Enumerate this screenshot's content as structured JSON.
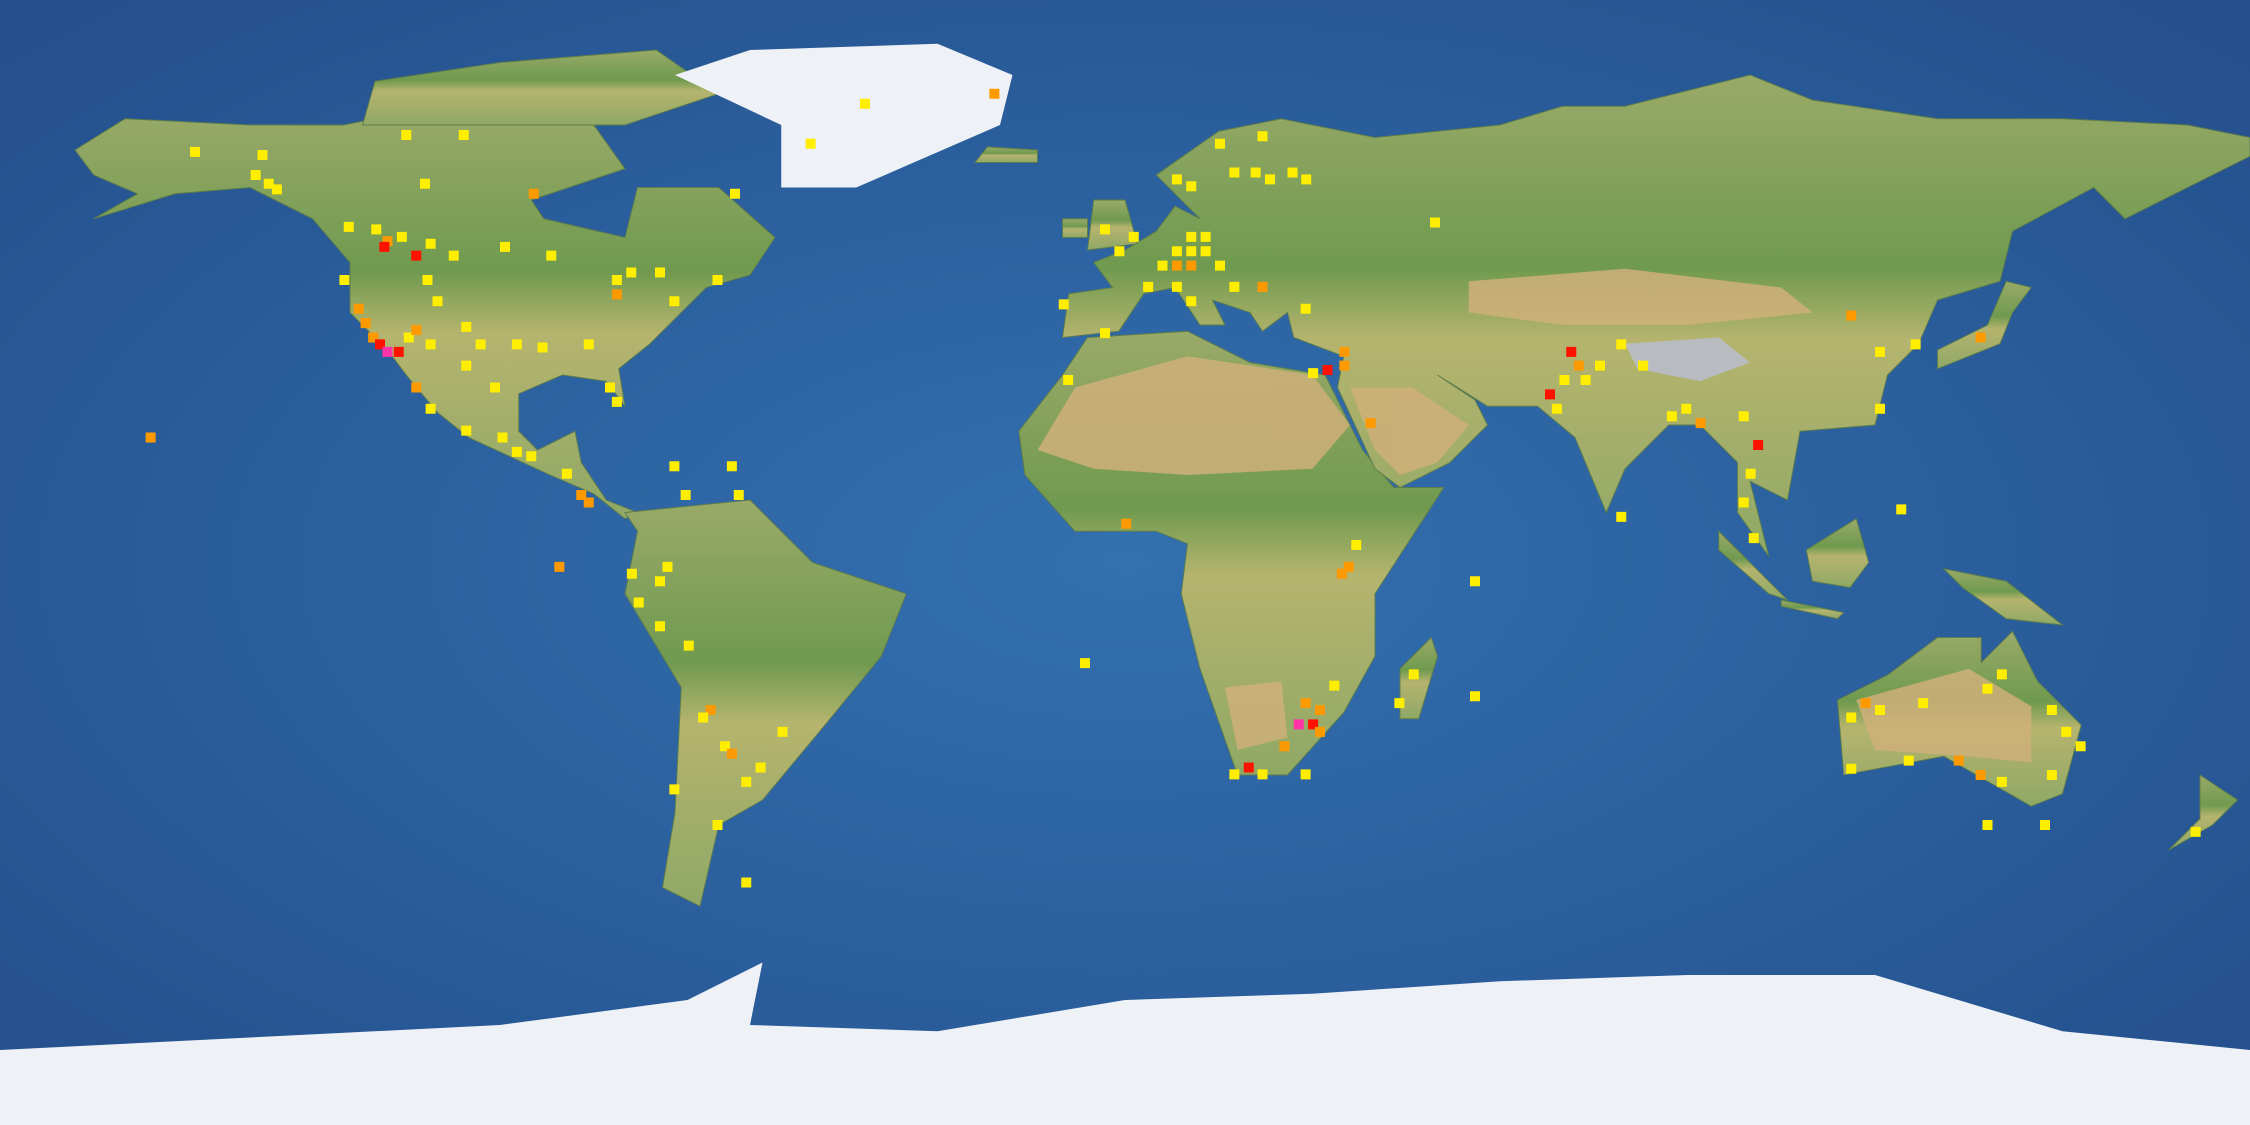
{
  "map": {
    "projection": "equirectangular",
    "basemap": "satellite-relief",
    "cell_size_deg": 1.6,
    "colors": {
      "ocean": "#2d65a6",
      "ocean_deep": "#244f8c",
      "land": "#7ea55a",
      "desert": "#cfb07a",
      "ice": "#eef2f6",
      "level_1": "#ffee00",
      "level_2": "#ff9900",
      "level_3": "#ff1100",
      "level_4": "#ff33aa"
    },
    "points": [
      [
        -148.8,
        65.7,
        1
      ],
      [
        -138,
        65.2,
        1
      ],
      [
        -139.1,
        62,
        1
      ],
      [
        -137,
        60.6,
        1
      ],
      [
        -135.7,
        59.7,
        1
      ],
      [
        -112,
        60.6,
        1
      ],
      [
        -115,
        68.4,
        1
      ],
      [
        -105.8,
        68.4,
        1
      ],
      [
        -94.6,
        59,
        2
      ],
      [
        -62.4,
        59,
        1
      ],
      [
        -124.2,
        53.7,
        1
      ],
      [
        -119.8,
        53.3,
        1
      ],
      [
        -118,
        51.4,
        2
      ],
      [
        -118.5,
        50.5,
        3
      ],
      [
        -113.4,
        49.1,
        3
      ],
      [
        -115.7,
        52.1,
        1
      ],
      [
        -111.1,
        51,
        1
      ],
      [
        -107.4,
        49.1,
        1
      ],
      [
        -99.2,
        50.5,
        1
      ],
      [
        -91.8,
        49.1,
        1
      ],
      [
        -124.9,
        45.2,
        1
      ],
      [
        -111.6,
        45.2,
        1
      ],
      [
        -110,
        41.8,
        1
      ],
      [
        -122.6,
        40.6,
        2
      ],
      [
        -121.5,
        38.3,
        2
      ],
      [
        -120.3,
        36,
        2
      ],
      [
        -119.2,
        34.9,
        3
      ],
      [
        -118,
        33.7,
        4
      ],
      [
        -116.2,
        33.7,
        3
      ],
      [
        -114.6,
        36,
        1
      ],
      [
        -113.4,
        37.2,
        2
      ],
      [
        -111.1,
        34.9,
        1
      ],
      [
        -105.4,
        37.7,
        1
      ],
      [
        -103.1,
        34.9,
        1
      ],
      [
        -105.4,
        31.5,
        1
      ],
      [
        -100.8,
        28,
        1
      ],
      [
        -93.2,
        34.4,
        1
      ],
      [
        -97.3,
        34.9,
        1
      ],
      [
        -81.3,
        45.2,
        1
      ],
      [
        -79,
        46.4,
        1
      ],
      [
        -74.4,
        46.4,
        1
      ],
      [
        -65.2,
        45.2,
        1
      ],
      [
        -72.1,
        41.8,
        1
      ],
      [
        -81.3,
        42.9,
        2
      ],
      [
        -82.4,
        28,
        1
      ],
      [
        -81.3,
        25.7,
        1
      ],
      [
        -85.8,
        34.9,
        1
      ],
      [
        -113.4,
        28,
        2
      ],
      [
        -111.1,
        24.6,
        1
      ],
      [
        -105.4,
        21.1,
        1
      ],
      [
        -99.6,
        20,
        1
      ],
      [
        -97.3,
        17.7,
        1
      ],
      [
        -95,
        17,
        1
      ],
      [
        -89.3,
        14.2,
        1
      ],
      [
        -87,
        10.8,
        2
      ],
      [
        -85.8,
        9.6,
        2
      ],
      [
        -72.1,
        15.4,
        1
      ],
      [
        -62.9,
        15.4,
        1
      ],
      [
        -61.8,
        10.8,
        1
      ],
      [
        -70.3,
        10.8,
        1
      ],
      [
        -155.9,
        20,
        2
      ],
      [
        -90.5,
        -0.7,
        2
      ],
      [
        -41.6,
        73.4,
        1
      ],
      [
        -50.3,
        67,
        1
      ],
      [
        -20.9,
        75,
        2
      ],
      [
        49.6,
        54.4,
        1
      ],
      [
        8.3,
        61.3,
        1
      ],
      [
        10.6,
        60.2,
        1
      ],
      [
        15.2,
        67,
        1
      ],
      [
        22,
        68.2,
        1
      ],
      [
        20.9,
        62.4,
        1
      ],
      [
        23.2,
        61.3,
        1
      ],
      [
        26.8,
        62.4,
        1
      ],
      [
        29,
        61.3,
        1
      ],
      [
        17.5,
        62.4,
        1
      ],
      [
        10.6,
        52.1,
        1
      ],
      [
        12.9,
        52.1,
        1
      ],
      [
        8.3,
        49.8,
        1
      ],
      [
        10.6,
        49.8,
        1
      ],
      [
        12.9,
        49.8,
        1
      ],
      [
        6,
        47.5,
        1
      ],
      [
        8.3,
        47.5,
        2
      ],
      [
        10.6,
        47.5,
        2
      ],
      [
        15.2,
        47.5,
        1
      ],
      [
        1.4,
        52.1,
        1
      ],
      [
        -3.2,
        53.3,
        1
      ],
      [
        -0.9,
        49.8,
        1
      ],
      [
        3.7,
        44.1,
        1
      ],
      [
        8.3,
        44.1,
        1
      ],
      [
        10.6,
        41.8,
        1
      ],
      [
        17.5,
        44.1,
        1
      ],
      [
        22,
        44.1,
        2
      ],
      [
        28.9,
        40.6,
        1
      ],
      [
        -9.8,
        41.3,
        1
      ],
      [
        -3.2,
        36.7,
        1
      ],
      [
        -9.1,
        29.2,
        1
      ],
      [
        35.1,
        33.7,
        2
      ],
      [
        35.1,
        31.5,
        2
      ],
      [
        32.4,
        30.8,
        3
      ],
      [
        30.1,
        30.3,
        1
      ],
      [
        39.3,
        22.3,
        2
      ],
      [
        0.2,
        6.2,
        2
      ],
      [
        35.8,
        -0.7,
        2
      ],
      [
        34.7,
        -1.8,
        2
      ],
      [
        37,
        2.8,
        1
      ],
      [
        56,
        -3,
        1
      ],
      [
        -6.4,
        -16.1,
        1
      ],
      [
        46.2,
        -17.9,
        1
      ],
      [
        43.9,
        -22.5,
        1
      ],
      [
        56,
        -21.4,
        1
      ],
      [
        28.9,
        -22.5,
        2
      ],
      [
        31.2,
        -23.6,
        2
      ],
      [
        30.1,
        -25.9,
        3
      ],
      [
        27.8,
        -25.9,
        4
      ],
      [
        31.2,
        -27.1,
        2
      ],
      [
        25.5,
        -29.4,
        2
      ],
      [
        19.8,
        -32.8,
        3
      ],
      [
        17.5,
        -33.9,
        1
      ],
      [
        22,
        -33.9,
        1
      ],
      [
        28.9,
        -33.9,
        1
      ],
      [
        33.5,
        -19.7,
        1
      ],
      [
        71.4,
        33.7,
        3
      ],
      [
        72.6,
        31.5,
        2
      ],
      [
        73.7,
        29.2,
        1
      ],
      [
        70.3,
        29.2,
        1
      ],
      [
        68,
        26.9,
        3
      ],
      [
        69.1,
        24.6,
        1
      ],
      [
        76,
        31.5,
        1
      ],
      [
        82.9,
        31.5,
        1
      ],
      [
        79.4,
        34.9,
        1
      ],
      [
        89.8,
        24.6,
        1
      ],
      [
        92.1,
        22.3,
        2
      ],
      [
        87.5,
        23.4,
        1
      ],
      [
        101.3,
        18.8,
        3
      ],
      [
        100.1,
        14.2,
        1
      ],
      [
        99,
        9.6,
        1
      ],
      [
        100.6,
        3.9,
        1
      ],
      [
        79.4,
        7.3,
        1
      ],
      [
        116.2,
        39.5,
        2
      ],
      [
        120.8,
        33.7,
        1
      ],
      [
        136.9,
        36,
        2
      ],
      [
        126.5,
        34.9,
        1
      ],
      [
        120.8,
        24.6,
        1
      ],
      [
        124.2,
        8.5,
        1
      ],
      [
        99,
        23.4,
        1
      ],
      [
        118.5,
        -22.5,
        2
      ],
      [
        116.2,
        -24.8,
        1
      ],
      [
        120.8,
        -23.6,
        1
      ],
      [
        127.7,
        -22.5,
        1
      ],
      [
        138,
        -20.2,
        1
      ],
      [
        140.3,
        -17.9,
        1
      ],
      [
        148.3,
        -23.6,
        1
      ],
      [
        150.6,
        -27.1,
        1
      ],
      [
        152.9,
        -29.4,
        1
      ],
      [
        116.2,
        -33,
        1
      ],
      [
        125.4,
        -31.7,
        1
      ],
      [
        133.4,
        -31.7,
        2
      ],
      [
        136.9,
        -34,
        2
      ],
      [
        140.3,
        -35.1,
        1
      ],
      [
        148.3,
        -34,
        1
      ],
      [
        147.2,
        -42,
        1
      ],
      [
        138,
        -42,
        1
      ],
      [
        171.3,
        -43.1,
        1
      ],
      [
        -74.4,
        -3,
        1
      ],
      [
        -78.9,
        -1.8,
        1
      ],
      [
        -77.8,
        -6.4,
        1
      ],
      [
        -74.4,
        -10.2,
        1
      ],
      [
        -69.8,
        -13.3,
        1
      ],
      [
        -66.3,
        -23.6,
        2
      ],
      [
        -67.5,
        -24.8,
        1
      ],
      [
        -64,
        -29.4,
        1
      ],
      [
        -62.9,
        -30.6,
        2
      ],
      [
        -54.8,
        -27.1,
        1
      ],
      [
        -58.3,
        -32.8,
        1
      ],
      [
        -60.6,
        -35.1,
        1
      ],
      [
        -72.1,
        -36.3,
        1
      ],
      [
        -65.2,
        -42,
        1
      ],
      [
        -60.6,
        -51.2,
        1
      ],
      [
        -73.2,
        -0.7,
        1
      ]
    ]
  }
}
